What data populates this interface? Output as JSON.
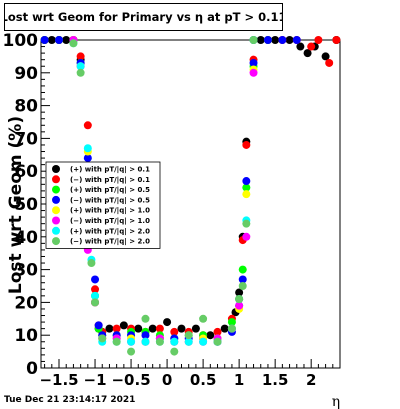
{
  "chart_data": {
    "type": "scatter",
    "title": "Lost wrt Geom for Primary vs  η at pT > 0.11",
    "xlabel": "η",
    "ylabel": "Lost wrt Geom (%)",
    "xlim": [
      -1.75,
      2.4
    ],
    "ylim": [
      0,
      100
    ],
    "x_ticks": [
      -1.5,
      -1,
      -0.5,
      0,
      0.5,
      1,
      1.5,
      2
    ],
    "x_tick_labels": [
      "−1.5",
      "−1",
      "−0.5",
      "0",
      "0.5",
      "1",
      "1.5",
      "2"
    ],
    "y_ticks": [
      0,
      10,
      20,
      30,
      40,
      50,
      60,
      70,
      80,
      90,
      100
    ],
    "y_tick_labels": [
      "0",
      "10",
      "20",
      "30",
      "40",
      "50",
      "60",
      "70",
      "80",
      "90",
      "100"
    ],
    "grid": false,
    "legend_position": "middle-left",
    "series": [
      {
        "name": "(+) with pT/|q| > 0.1",
        "color": "#000000",
        "marker": "circle",
        "x": [
          -1.7,
          -1.6,
          -1.5,
          -1.4,
          -1.3,
          -1.2,
          -1.1,
          -1.05,
          -1.0,
          -0.95,
          -0.9,
          -0.8,
          -0.6,
          -0.4,
          -0.2,
          0.0,
          0.2,
          0.4,
          0.6,
          0.8,
          0.95,
          1.0,
          1.05,
          1.1,
          1.2,
          1.3,
          1.5,
          1.7,
          1.85,
          1.95,
          2.05,
          2.2,
          2.35
        ],
        "y": [
          100,
          100,
          100,
          100,
          100,
          94,
          60,
          40,
          20,
          12,
          11,
          12,
          13,
          12,
          12,
          14,
          12,
          12,
          10,
          12,
          17,
          23,
          40,
          69,
          100,
          100,
          100,
          100,
          98,
          96,
          98,
          95,
          100
        ]
      },
      {
        "name": "(−) with pT/|q| > 0.1",
        "color": "#ff0000",
        "marker": "circle",
        "x": [
          -1.7,
          -1.5,
          -1.3,
          -1.2,
          -1.1,
          -1.05,
          -1.0,
          -0.95,
          -0.9,
          -0.7,
          -0.5,
          -0.3,
          -0.1,
          0.1,
          0.3,
          0.5,
          0.7,
          0.9,
          1.0,
          1.05,
          1.1,
          1.2,
          1.4,
          1.6,
          1.8,
          2.0,
          2.1,
          2.25,
          2.35
        ],
        "y": [
          100,
          100,
          100,
          95,
          74,
          50,
          24,
          13,
          11,
          12,
          12,
          11,
          12,
          11,
          11,
          10,
          11,
          15,
          21,
          39,
          68,
          94,
          100,
          100,
          100,
          98,
          100,
          93,
          100
        ]
      },
      {
        "name": "(+) with pT/|q| > 0.5",
        "color": "#00ff00",
        "marker": "circle",
        "x": [
          -1.7,
          -1.5,
          -1.3,
          -1.2,
          -1.1,
          -1.0,
          -0.95,
          -0.9,
          -0.7,
          -0.5,
          -0.3,
          -0.1,
          0.1,
          0.3,
          0.5,
          0.7,
          0.9,
          1.0,
          1.05,
          1.1,
          1.2,
          1.4
        ],
        "y": [
          100,
          100,
          100,
          93,
          58,
          22,
          12,
          10,
          10,
          11,
          11,
          10,
          9,
          10,
          10,
          9,
          14,
          21,
          30,
          55,
          92,
          100
        ]
      },
      {
        "name": "(−) with pT/|q| > 0.5",
        "color": "#0000ff",
        "marker": "circle",
        "x": [
          -1.7,
          -1.5,
          -1.3,
          -1.2,
          -1.1,
          -1.05,
          -1.0,
          -0.95,
          -0.9,
          -0.7,
          -0.5,
          -0.3,
          -0.1,
          0.1,
          0.3,
          0.5,
          0.7,
          0.9,
          1.0,
          1.05,
          1.1,
          1.2,
          1.4,
          1.6,
          1.8
        ],
        "y": [
          100,
          100,
          100,
          93,
          64,
          40,
          27,
          13,
          10,
          10,
          10,
          10,
          9,
          9,
          9,
          9,
          8,
          11,
          19,
          27,
          57,
          93,
          100,
          100,
          100
        ]
      },
      {
        "name": "(+) with pT/|q| > 1.0",
        "color": "#ffff00",
        "marker": "circle",
        "x": [
          -1.3,
          -1.2,
          -1.1,
          -1.0,
          -0.9,
          -0.7,
          -0.5,
          -0.3,
          -0.1,
          0.1,
          0.3,
          0.5,
          0.7,
          0.9,
          1.0,
          1.1,
          1.2
        ],
        "y": [
          100,
          92,
          66,
          20,
          9,
          9,
          9,
          8,
          9,
          8,
          8,
          9,
          9,
          12,
          18,
          53,
          91
        ]
      },
      {
        "name": "(−) with pT/|q| > 1.0",
        "color": "#ff00ff",
        "marker": "circle",
        "x": [
          -1.3,
          -1.2,
          -1.1,
          -1.0,
          -0.9,
          -0.7,
          -0.5,
          -0.3,
          -0.1,
          0.1,
          0.3,
          0.5,
          0.7,
          0.9,
          1.0,
          1.1,
          1.2
        ],
        "y": [
          100,
          92,
          36,
          20,
          9,
          9,
          8,
          8,
          9,
          8,
          8,
          8,
          9,
          12,
          19,
          40,
          90
        ]
      },
      {
        "name": "(+) with pT/|q| > 2.0",
        "color": "#00ffff",
        "marker": "circle",
        "x": [
          -1.3,
          -1.2,
          -1.1,
          -1.05,
          -1.0,
          -0.9,
          -0.7,
          -0.5,
          -0.3,
          -0.1,
          0.1,
          0.3,
          0.5,
          0.7,
          0.9,
          1.0,
          1.1,
          1.2
        ],
        "y": [
          99,
          92,
          67,
          33,
          22,
          8,
          8,
          8,
          8,
          8,
          8,
          8,
          8,
          8,
          12,
          21,
          45,
          100
        ]
      },
      {
        "name": "(−) with pT/|q| > 2.0",
        "color": "#66cc66",
        "marker": "circle",
        "x": [
          -1.3,
          -1.2,
          -1.1,
          -1.05,
          -1.0,
          -0.9,
          -0.7,
          -0.5,
          -0.3,
          -0.1,
          0.1,
          0.3,
          0.5,
          0.7,
          0.9,
          1.0,
          1.05,
          1.1,
          1.2
        ],
        "y": [
          99,
          90,
          60,
          32,
          20,
          9,
          8,
          5,
          15,
          8,
          5,
          10,
          15,
          8,
          12,
          21,
          25,
          44,
          100
        ]
      }
    ]
  },
  "footer": {
    "timestamp": "Tue Dec 21 23:14:17 2021"
  }
}
